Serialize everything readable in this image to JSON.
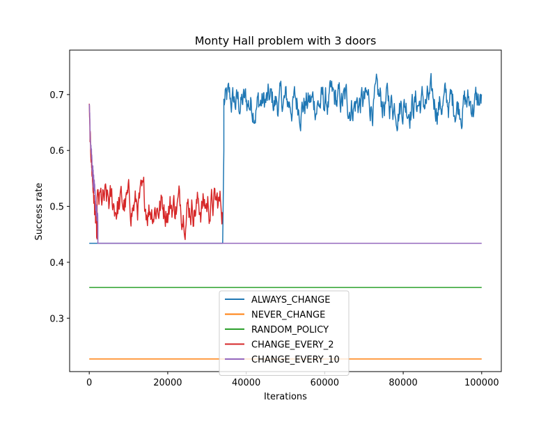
{
  "chart_data": {
    "type": "line",
    "title": "Monty Hall problem with 3 doors",
    "xlabel": "Iterations",
    "ylabel": "Success rate",
    "xlim": [
      -5000,
      105000
    ],
    "ylim": [
      0.2045,
      0.7795
    ],
    "x_ticks": [
      0,
      20000,
      40000,
      60000,
      80000,
      100000
    ],
    "x_tick_labels": [
      "0",
      "20000",
      "40000",
      "60000",
      "80000",
      "100000"
    ],
    "y_ticks": [
      0.3,
      0.4,
      0.5,
      0.6,
      0.7
    ],
    "y_tick_labels": [
      "0.3",
      "0.4",
      "0.5",
      "0.6",
      "0.7"
    ],
    "grid": false,
    "legend_position": "lower-center",
    "series": [
      {
        "name": "ALWAYS_CHANGE",
        "color": "#1f77b4",
        "segments": [
          {
            "x_start": 0,
            "x_end": 34000,
            "y_low": 0.434,
            "y_high": 0.434
          },
          {
            "x_start": 34000,
            "x_end": 34300,
            "y_low": 0.434,
            "y_high": 0.6
          },
          {
            "x_start": 34300,
            "x_end": 100000,
            "y_low": 0.62,
            "y_high": 0.75
          }
        ],
        "final_value": 0.665
      },
      {
        "name": "NEVER_CHANGE",
        "color": "#ff7f0e",
        "segments": [
          {
            "x_start": 0,
            "x_end": 100000,
            "y_low": 0.227,
            "y_high": 0.227
          }
        ],
        "final_value": 0.227
      },
      {
        "name": "RANDOM_POLICY",
        "color": "#2ca02c",
        "segments": [
          {
            "x_start": 0,
            "x_end": 100000,
            "y_low": 0.355,
            "y_high": 0.355
          }
        ],
        "final_value": 0.355
      },
      {
        "name": "CHANGE_EVERY_2",
        "color": "#d62728",
        "segments": [
          {
            "x_start": 0,
            "x_end": 2000,
            "y_low": 0.45,
            "y_high": 0.69
          },
          {
            "x_start": 2000,
            "x_end": 34000,
            "y_low": 0.435,
            "y_high": 0.57
          }
        ],
        "final_value": 0.434
      },
      {
        "name": "CHANGE_EVERY_10",
        "color": "#9467bd",
        "segments": [
          {
            "x_start": 0,
            "x_end": 2200,
            "y_low": 0.47,
            "y_high": 0.694
          },
          {
            "x_start": 2200,
            "x_end": 100000,
            "y_low": 0.434,
            "y_high": 0.434
          }
        ],
        "final_value": 0.434
      }
    ]
  }
}
